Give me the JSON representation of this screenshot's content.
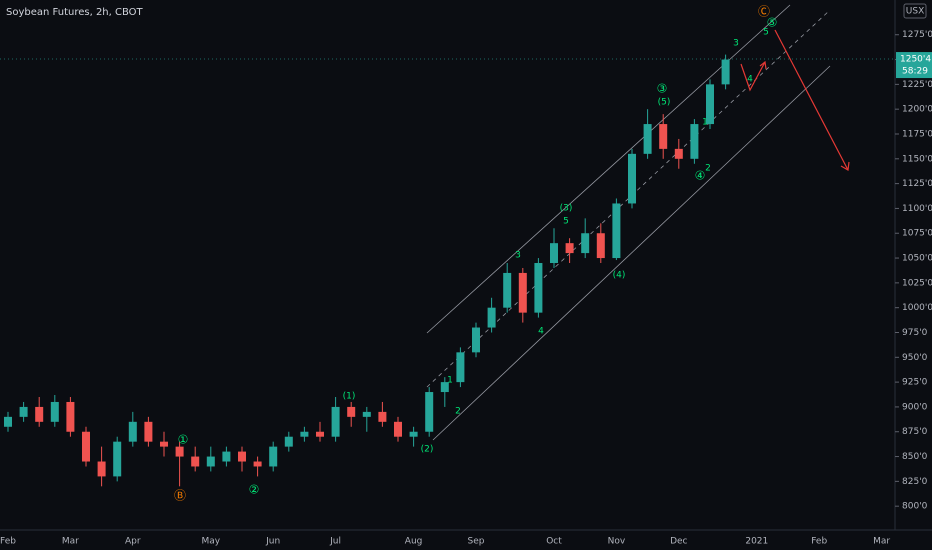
{
  "chart_data": {
    "type": "candlestick",
    "title": "Soybean Futures, 2h, CBOT",
    "currency": "USX",
    "last_price": {
      "value": 1250.5,
      "label": "1250'4"
    },
    "countdown": "58:29",
    "up_color": "#26a69a",
    "down_color": "#ef5350",
    "categories": [
      "Feb",
      null,
      null,
      null,
      "Mar",
      null,
      null,
      null,
      "Apr",
      null,
      null,
      null,
      null,
      "May",
      null,
      null,
      null,
      "Jun",
      null,
      null,
      null,
      "Jul",
      null,
      null,
      null,
      null,
      "Aug",
      null,
      null,
      null,
      "Sep",
      null,
      null,
      null,
      null,
      "Oct",
      null,
      null,
      null,
      "Nov",
      null,
      null,
      null,
      "Dec",
      null,
      null,
      null,
      null,
      "2021",
      null,
      null,
      null,
      "Feb",
      null,
      null,
      null,
      "Mar"
    ],
    "open": [
      880,
      890,
      900,
      885,
      905,
      875,
      845,
      830,
      865,
      885,
      865,
      860,
      850,
      840,
      845,
      855,
      845,
      840,
      860,
      870,
      875,
      870,
      900,
      890,
      895,
      885,
      870,
      875,
      915,
      925,
      955,
      980,
      1000,
      1035,
      995,
      1045,
      1065,
      1055,
      1075,
      1050,
      1105,
      1155,
      1185,
      1160,
      1150,
      1185,
      1225,
      null,
      null,
      null,
      null,
      null,
      null,
      null,
      null,
      null,
      null
    ],
    "high": [
      895,
      905,
      910,
      912,
      910,
      880,
      860,
      870,
      895,
      890,
      875,
      865,
      860,
      860,
      860,
      860,
      850,
      865,
      875,
      880,
      885,
      910,
      905,
      900,
      905,
      890,
      880,
      920,
      930,
      960,
      985,
      1010,
      1045,
      1040,
      1050,
      1080,
      1070,
      1090,
      1085,
      1110,
      1160,
      1200,
      1195,
      1170,
      1190,
      1230,
      1255,
      null,
      null,
      null,
      null,
      null,
      null,
      null,
      null,
      null,
      null
    ],
    "low": [
      875,
      885,
      880,
      880,
      870,
      840,
      820,
      825,
      860,
      860,
      850,
      820,
      835,
      835,
      840,
      835,
      830,
      835,
      855,
      865,
      865,
      865,
      880,
      875,
      880,
      865,
      860,
      870,
      900,
      920,
      950,
      975,
      995,
      985,
      990,
      1040,
      1045,
      1050,
      1045,
      1048,
      1100,
      1150,
      1150,
      1140,
      1145,
      1180,
      1220,
      null,
      null,
      null,
      null,
      null,
      null,
      null,
      null,
      null,
      null
    ],
    "close": [
      890,
      900,
      885,
      905,
      875,
      845,
      830,
      865,
      885,
      865,
      860,
      850,
      840,
      850,
      855,
      845,
      840,
      860,
      870,
      875,
      870,
      900,
      890,
      895,
      885,
      870,
      875,
      915,
      925,
      955,
      980,
      1000,
      1035,
      995,
      1045,
      1065,
      1055,
      1075,
      1050,
      1105,
      1155,
      1185,
      1160,
      1150,
      1185,
      1225,
      1250,
      null,
      null,
      null,
      null,
      null,
      null,
      null,
      null,
      null,
      null
    ],
    "ylim": [
      776,
      1310
    ],
    "yticks": [
      {
        "value": 800,
        "label": "800'0"
      },
      {
        "value": 825,
        "label": "825'0"
      },
      {
        "value": 850,
        "label": "850'0"
      },
      {
        "value": 875,
        "label": "875'0"
      },
      {
        "value": 900,
        "label": "900'0"
      },
      {
        "value": 925,
        "label": "925'0"
      },
      {
        "value": 950,
        "label": "950'0"
      },
      {
        "value": 975,
        "label": "975'0"
      },
      {
        "value": 1000,
        "label": "1000'0"
      },
      {
        "value": 1025,
        "label": "1025'0"
      },
      {
        "value": 1050,
        "label": "1050'0"
      },
      {
        "value": 1075,
        "label": "1075'0"
      },
      {
        "value": 1100,
        "label": "1100'0"
      },
      {
        "value": 1125,
        "label": "1125'0"
      },
      {
        "value": 1150,
        "label": "1150'0"
      },
      {
        "value": 1175,
        "label": "1175'0"
      },
      {
        "value": 1200,
        "label": "1200'0"
      },
      {
        "value": 1225,
        "label": "1225'0"
      },
      {
        "value": 1250,
        "label": "1250'0"
      },
      {
        "value": 1275,
        "label": "1275'0"
      }
    ],
    "grid": false,
    "annotations": [
      {
        "text": "①",
        "color": "#00e676"
      },
      {
        "text": "Ⓑ",
        "color": "#f57c00"
      },
      {
        "text": "②",
        "color": "#00e676"
      },
      {
        "text": "(1)",
        "color": "#00e676"
      },
      {
        "text": "(2)",
        "color": "#00e676"
      },
      {
        "text": "1",
        "color": "#00e676"
      },
      {
        "text": "2",
        "color": "#00e676"
      },
      {
        "text": "3",
        "color": "#00e676"
      },
      {
        "text": "4",
        "color": "#00e676"
      },
      {
        "text": "(3)",
        "color": "#00e676"
      },
      {
        "text": "5",
        "color": "#00e676"
      },
      {
        "text": "(4)",
        "color": "#00e676"
      },
      {
        "text": "③",
        "color": "#00e676"
      },
      {
        "text": "(5)",
        "color": "#00e676"
      },
      {
        "text": "1",
        "color": "#00e676"
      },
      {
        "text": "2",
        "color": "#00e676"
      },
      {
        "text": "④",
        "color": "#00e676"
      },
      {
        "text": "3",
        "color": "#00e676"
      },
      {
        "text": "4",
        "color": "#00e676"
      },
      {
        "text": "5",
        "color": "#00e676"
      },
      {
        "text": "⑤",
        "color": "#00e676"
      },
      {
        "text": "Ⓒ",
        "color": "#f57c00"
      }
    ]
  }
}
